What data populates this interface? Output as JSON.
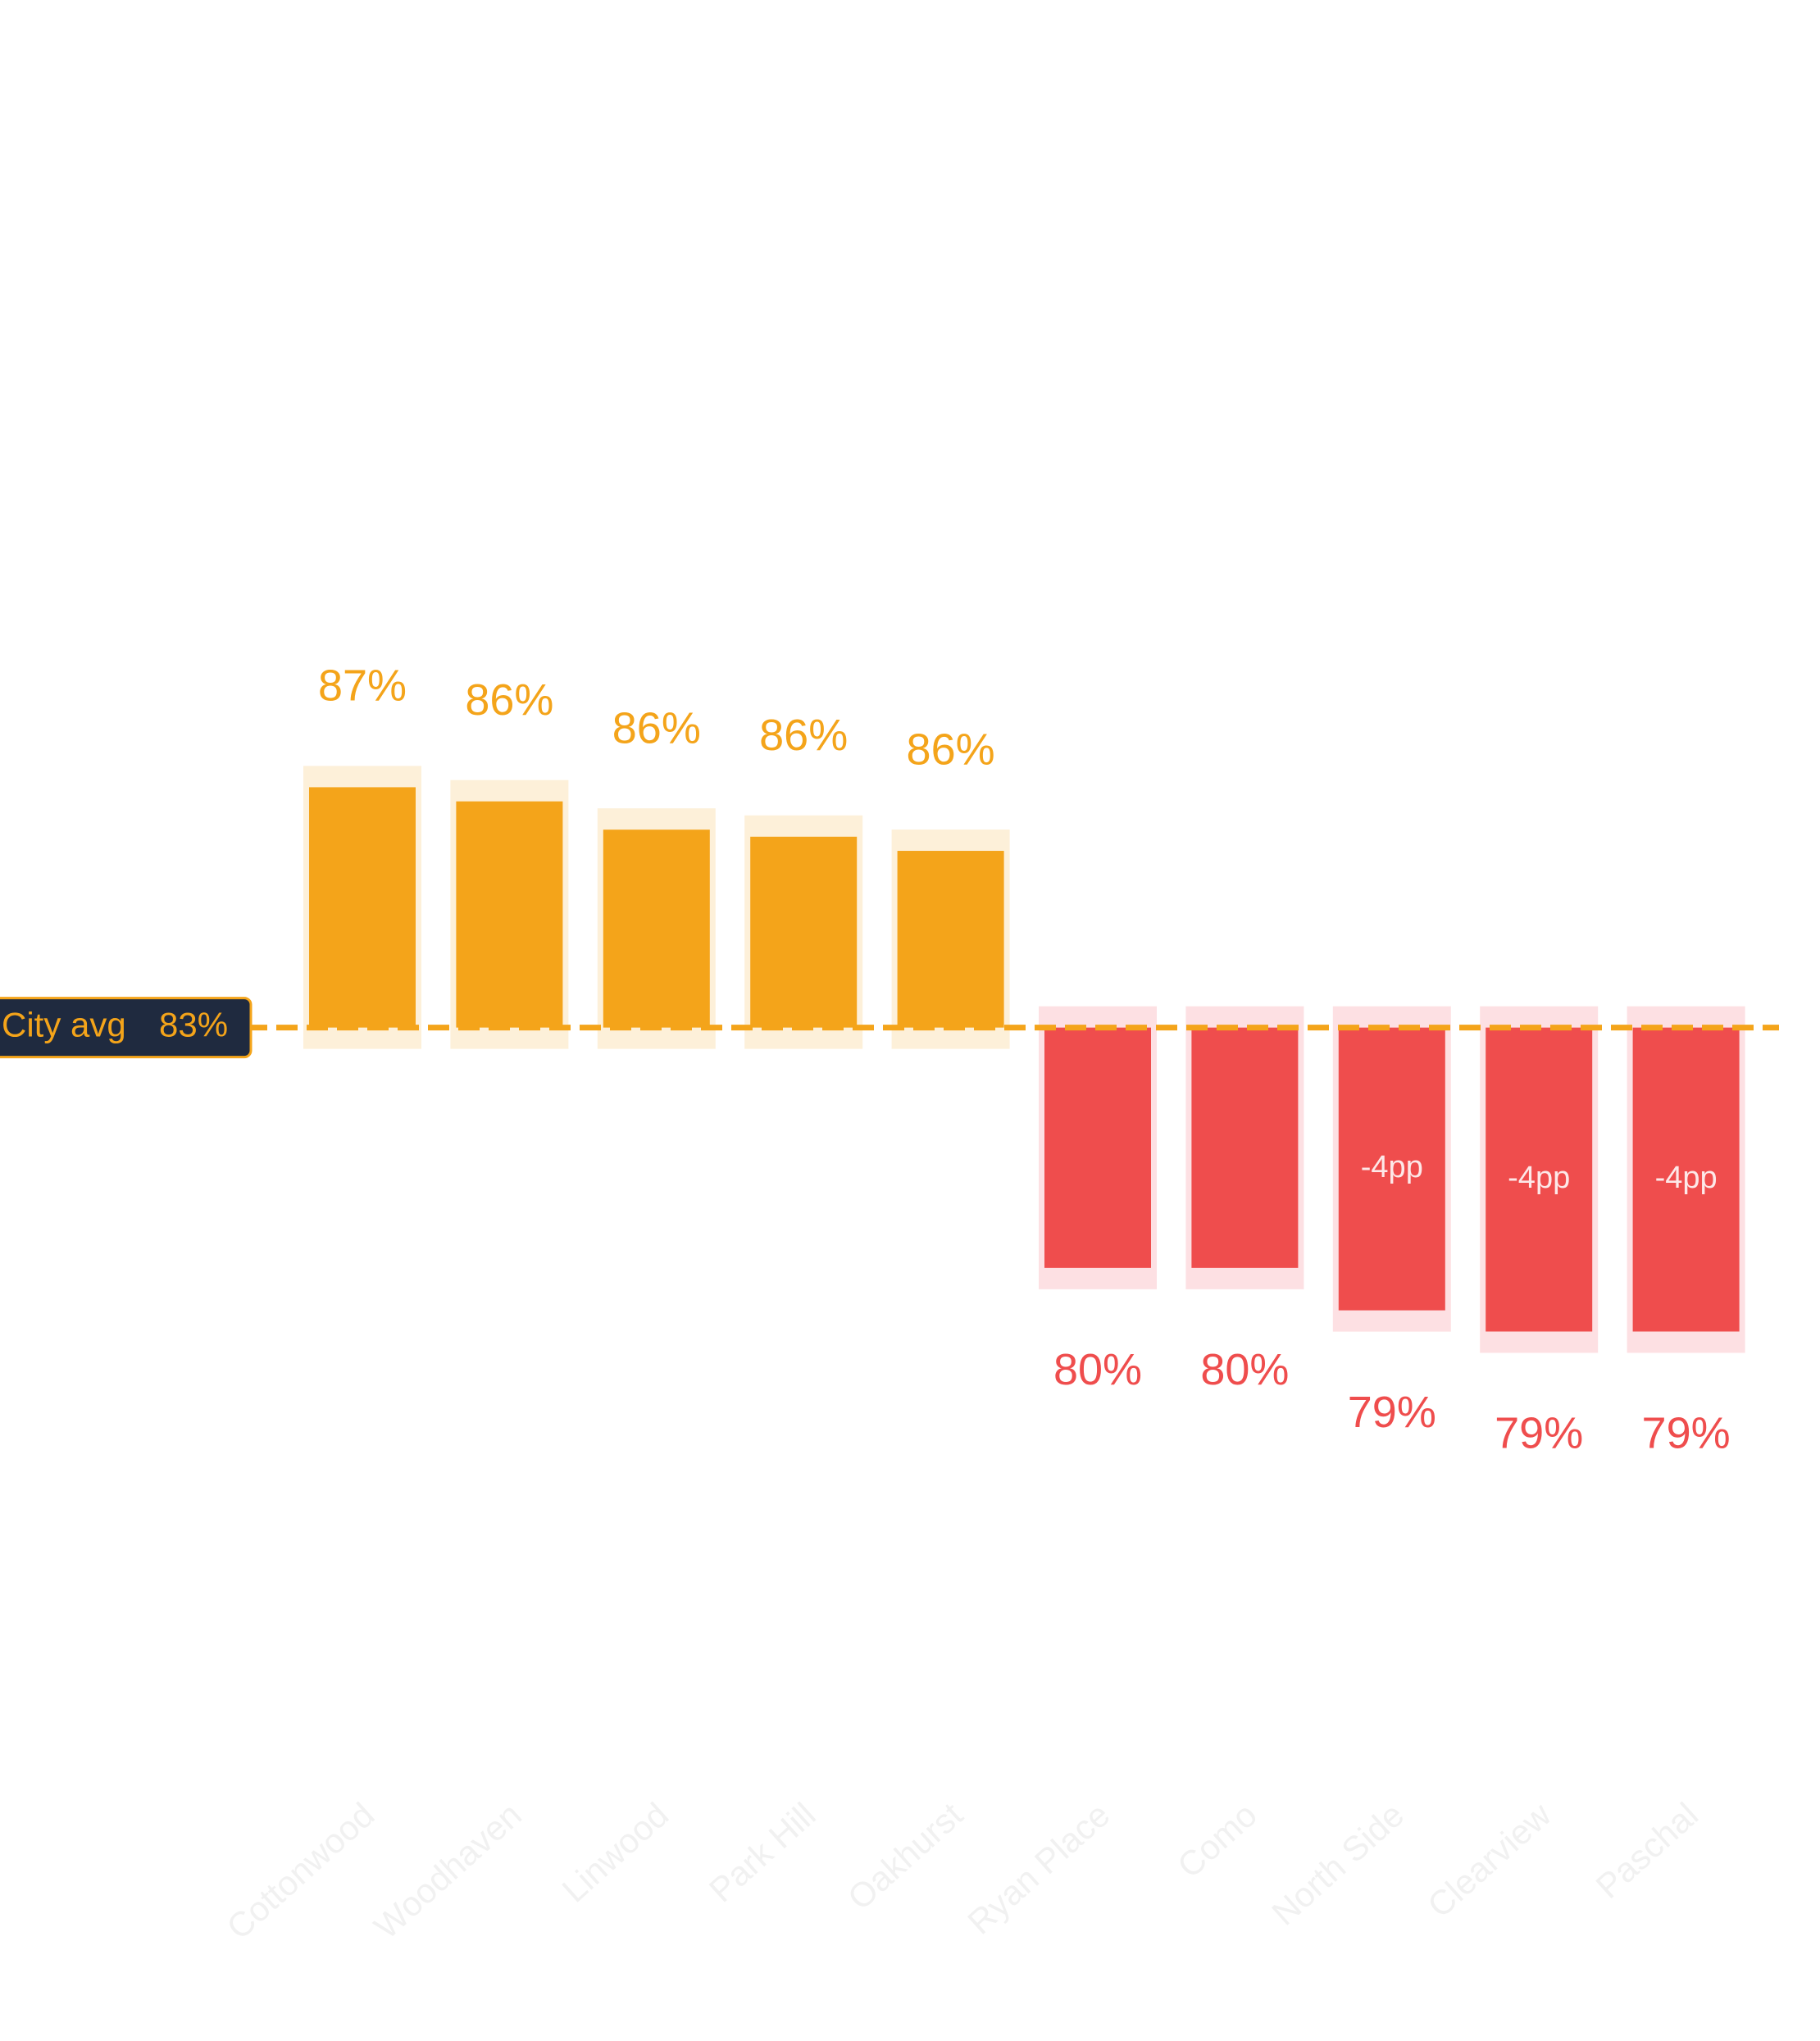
{
  "chart_data": {
    "type": "diverging-bar",
    "categories": [
      "Cottonwood",
      "Woodhaven",
      "Linwood",
      "Park Hill",
      "Oakhurst",
      "Ryan Place",
      "Como",
      "North Side",
      "Clearview",
      "Paschal"
    ],
    "values": [
      86.6,
      86.4,
      86.0,
      85.9,
      85.7,
      79.8,
      79.8,
      79.2,
      78.9,
      78.9
    ],
    "value_labels": [
      "87%",
      "86%",
      "86%",
      "86%",
      "86%",
      "80%",
      "80%",
      "79%",
      "79%",
      "79%"
    ],
    "delta_labels": [
      null,
      null,
      null,
      null,
      null,
      null,
      null,
      "-4pp",
      "-4pp",
      "-4pp"
    ],
    "reference_line": {
      "label": "City avg",
      "value": 83.2,
      "value_label": "83%"
    },
    "color_above": "#f4a41a",
    "color_below": "#ef4d4d",
    "ylim": [
      70,
      95
    ]
  }
}
